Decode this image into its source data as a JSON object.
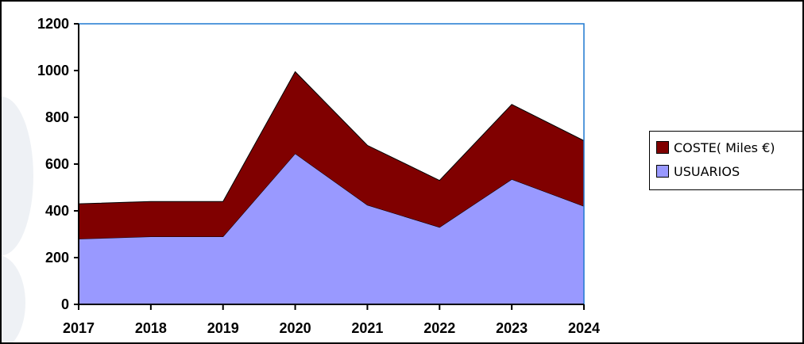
{
  "chart_data": {
    "type": "area",
    "stacked": true,
    "x": [
      "2017",
      "2018",
      "2019",
      "2020",
      "2021",
      "2022",
      "2023",
      "2024"
    ],
    "yticks": [
      "0",
      "200",
      "400",
      "600",
      "800",
      "1000",
      "1200"
    ],
    "ylim": [
      0,
      1200
    ],
    "series": [
      {
        "name": "USUARIOS",
        "color": "#9999ff",
        "values": [
          280,
          290,
          290,
          645,
          425,
          330,
          535,
          420
        ]
      },
      {
        "name": "COSTE( Miles €)",
        "color": "#800000",
        "values": [
          150,
          150,
          150,
          350,
          255,
          200,
          320,
          280
        ]
      }
    ],
    "legend_position": "right",
    "grid": false
  }
}
